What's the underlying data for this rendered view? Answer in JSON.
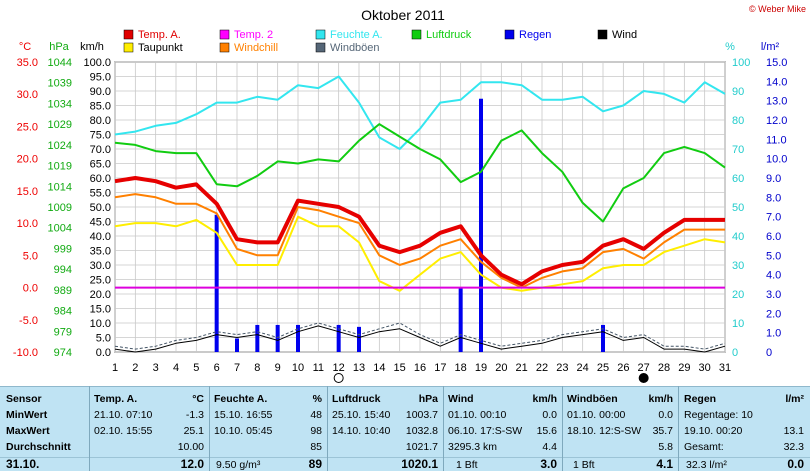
{
  "title": "Oktober 2011",
  "copyright": "© Weber Mike",
  "legend": [
    {
      "label": "Temp. A.",
      "color": "#e00000"
    },
    {
      "label": "Temp. 2",
      "color": "#ff00ff"
    },
    {
      "label": "Feuchte A.",
      "color": "#33e6ef"
    },
    {
      "label": "Luftdruck",
      "color": "#11cc11"
    },
    {
      "label": "Regen",
      "color": "#0000ee"
    },
    {
      "label": "Wind",
      "color": "#000000"
    },
    {
      "label": "Taupunkt",
      "color": "#ffee00"
    },
    {
      "label": "Windchill",
      "color": "#ff8000"
    },
    {
      "label": "Windböen",
      "color": "#556677"
    }
  ],
  "axis_units": {
    "temp": "°C",
    "pressure": "hPa",
    "speed": "km/h",
    "humidity": "%",
    "rain": "l/m²"
  },
  "chart_data": {
    "type": "line",
    "x": [
      1,
      2,
      3,
      4,
      5,
      6,
      7,
      8,
      9,
      10,
      11,
      12,
      13,
      14,
      15,
      16,
      17,
      18,
      19,
      20,
      21,
      22,
      23,
      24,
      25,
      26,
      27,
      28,
      29,
      30,
      31
    ],
    "xlim": [
      1,
      31
    ],
    "axes": {
      "temp": {
        "min": -10,
        "max": 35,
        "step": 5,
        "color": "#ee0000",
        "ticks": [
          "35.0",
          "30.0",
          "25.0",
          "20.0",
          "15.0",
          "10.0",
          "5.0",
          "0.0",
          "-5.0",
          "-10.0"
        ]
      },
      "pressure": {
        "min": 974,
        "max": 1044,
        "step": 5,
        "color": "#11aa11",
        "ticks": [
          "1044",
          "1039",
          "1034",
          "1029",
          "1024",
          "1019",
          "1014",
          "1009",
          "1004",
          "999",
          "994",
          "989",
          "984",
          "979",
          "974"
        ]
      },
      "speed": {
        "min": 0,
        "max": 100,
        "step": 5,
        "color": "#000000",
        "ticks": [
          "100.0",
          "95.0",
          "90.0",
          "85.0",
          "80.0",
          "75.0",
          "70.0",
          "65.0",
          "60.0",
          "55.0",
          "50.0",
          "45.0",
          "40.0",
          "35.0",
          "30.0",
          "25.0",
          "20.0",
          "15.0",
          "10.0",
          "5.0",
          "0.0"
        ]
      },
      "humidity": {
        "min": 0,
        "max": 100,
        "step": 10,
        "color": "#22cccc",
        "ticks": [
          "100",
          "90",
          "80",
          "70",
          "60",
          "50",
          "40",
          "30",
          "20",
          "10",
          "0"
        ]
      },
      "rain": {
        "min": 0,
        "max": 15,
        "step": 1,
        "color": "#0000cc",
        "ticks": [
          "15.0",
          "14.0",
          "13.0",
          "12.0",
          "11.0",
          "10.0",
          "9.0",
          "8.0",
          "7.0",
          "6.0",
          "5.0",
          "4.0",
          "3.0",
          "2.0",
          "1.0",
          "0"
        ]
      }
    },
    "series": [
      {
        "name": "Feuchte A.",
        "axis": "humidity",
        "color": "#33e6ef",
        "width": 2,
        "values": [
          75,
          76,
          78,
          79,
          82,
          86,
          86,
          88,
          87,
          92,
          91,
          95,
          86,
          74,
          70,
          77,
          86,
          87,
          93,
          93,
          92,
          87,
          87,
          88,
          83,
          85,
          90,
          89,
          86,
          93,
          89
        ]
      },
      {
        "name": "Luftdruck",
        "axis": "pressure",
        "color": "#11cc11",
        "width": 2,
        "values": [
          1024.5,
          1024,
          1022.5,
          1022,
          1022,
          1014.5,
          1014,
          1016.5,
          1020,
          1019.5,
          1020.5,
          1020,
          1025,
          1029,
          1026,
          1023,
          1020.5,
          1015,
          1017.5,
          1025,
          1027.5,
          1022,
          1017.5,
          1010,
          1005.5,
          1013.5,
          1016,
          1022,
          1023.5,
          1022,
          1018.5
        ]
      },
      {
        "name": "Taupunkt",
        "axis": "temp",
        "color": "#ffee00",
        "width": 2,
        "values": [
          9.5,
          10,
          10,
          9.5,
          10.5,
          8.5,
          3.5,
          3.5,
          3.5,
          11,
          9.5,
          9.5,
          7,
          1,
          -0.5,
          2,
          4.5,
          5.5,
          2,
          0,
          -0.5,
          0,
          0.5,
          1,
          3,
          3.5,
          3.5,
          5.5,
          6.5,
          7.5,
          7
        ]
      },
      {
        "name": "Windchill",
        "axis": "temp",
        "color": "#ff8000",
        "width": 2,
        "values": [
          14,
          14.5,
          14,
          13,
          13,
          11.5,
          6,
          5,
          5,
          12.5,
          12,
          11,
          10,
          5,
          3.5,
          4.5,
          6.5,
          7.5,
          4,
          1.5,
          0,
          1.5,
          2.5,
          3,
          5.5,
          6,
          4.5,
          7,
          9,
          9,
          9
        ]
      },
      {
        "name": "Temp. A.",
        "axis": "temp",
        "color": "#e60000",
        "width": 4,
        "values": [
          16.5,
          17,
          16.5,
          15.5,
          16,
          13,
          7.5,
          7,
          7,
          13.5,
          13,
          12.5,
          11,
          6.5,
          5.5,
          6.5,
          8.5,
          9.5,
          5,
          2,
          0.5,
          2.5,
          3.5,
          4,
          6.5,
          7.5,
          6,
          8.5,
          10.5,
          10.5,
          10.5
        ]
      },
      {
        "name": "Temp. 2",
        "axis": "temp",
        "color": "#dd00dd",
        "width": 2,
        "values": [
          0,
          0,
          0,
          0,
          0,
          0,
          0,
          0,
          0,
          0,
          0,
          0,
          0,
          0,
          0,
          0,
          0,
          0,
          0,
          0,
          0,
          0,
          0,
          0,
          0,
          0,
          0,
          0,
          0,
          0,
          0
        ]
      },
      {
        "name": "Windböen",
        "axis": "speed",
        "color": "#445566",
        "width": 1,
        "dashed": true,
        "values": [
          2,
          1,
          2,
          4,
          5,
          7,
          6,
          7,
          5,
          8,
          10,
          8,
          6,
          8,
          10,
          6,
          3,
          6,
          4,
          2,
          3,
          4,
          6,
          7,
          8,
          5,
          6,
          2,
          2,
          1,
          3
        ]
      },
      {
        "name": "Wind",
        "axis": "speed",
        "color": "#000000",
        "width": 1,
        "values": [
          1,
          0,
          1,
          3,
          4,
          6,
          5,
          6,
          4,
          7,
          9,
          7,
          5,
          7,
          8,
          5,
          2,
          5,
          3,
          1,
          2,
          3,
          5,
          6,
          7,
          4,
          5,
          1,
          1,
          0,
          2
        ]
      }
    ],
    "bars": {
      "name": "Regen",
      "axis": "rain",
      "color": "#0000ee",
      "x": [
        6,
        7,
        8,
        9,
        10,
        12,
        13,
        18,
        19,
        25
      ],
      "values": [
        7.1,
        0.7,
        1.4,
        1.4,
        1.4,
        1.4,
        1.3,
        3.3,
        13.1,
        1.4
      ]
    },
    "moon_icons": [
      {
        "day": 12,
        "phase": "full"
      },
      {
        "day": 27,
        "phase": "new"
      }
    ],
    "grid": true
  },
  "stats": {
    "headers": {
      "sensor": "Sensor",
      "temp": "Temp. A.",
      "temp_unit": "°C",
      "hum": "Feuchte A.",
      "hum_unit": "%",
      "press": "Luftdruck",
      "press_unit": "hPa",
      "wind": "Wind",
      "wind_unit": "km/h",
      "gust": "Windböen",
      "gust_unit": "km/h",
      "rain": "Regen",
      "rain_unit": "l/m²"
    },
    "row_labels": [
      "MinWert",
      "MaxWert",
      "Durchschnitt"
    ],
    "current_label": "31.10.",
    "temp": {
      "min_time": "21.10.  07:10",
      "min": "-1.3",
      "max_time": "02.10.  15:55",
      "max": "25.1",
      "avg": "10.00",
      "current": "12.0"
    },
    "hum": {
      "min_time": "15.10.  16:55",
      "min": "48",
      "max_time": "10.10.  05:45",
      "max": "98",
      "avg": "85",
      "abs": "9.50 g/m³",
      "current": "89"
    },
    "press": {
      "min_time": "25.10.  15:40",
      "min": "1003.7",
      "max_time": "14.10.  10:40",
      "max": "1032.8",
      "avg": "1021.7",
      "current": "1020.1"
    },
    "wind": {
      "min_time": "01.10.  00:10",
      "min": "0.0",
      "max_time": "06.10.  17:S-SW",
      "max": "15.6",
      "dist": "3295.3 km",
      "avg": "4.4",
      "bft": "1 Bft",
      "current": "3.0"
    },
    "gust": {
      "min_time": "01.10.  00:00",
      "min": "0.0",
      "max_time": "18.10.  12:S-SW",
      "max": "35.7",
      "avg": "5.8",
      "bft": "1 Bft",
      "current": "4.1"
    },
    "rain": {
      "days_label": "Regentage: 10",
      "max_time": "19.10.  00:20",
      "max": "13.1",
      "total_label": "Gesamt:",
      "total": "32.3",
      "cur_unit": "32.3 l/m²",
      "current": "0.0"
    }
  }
}
